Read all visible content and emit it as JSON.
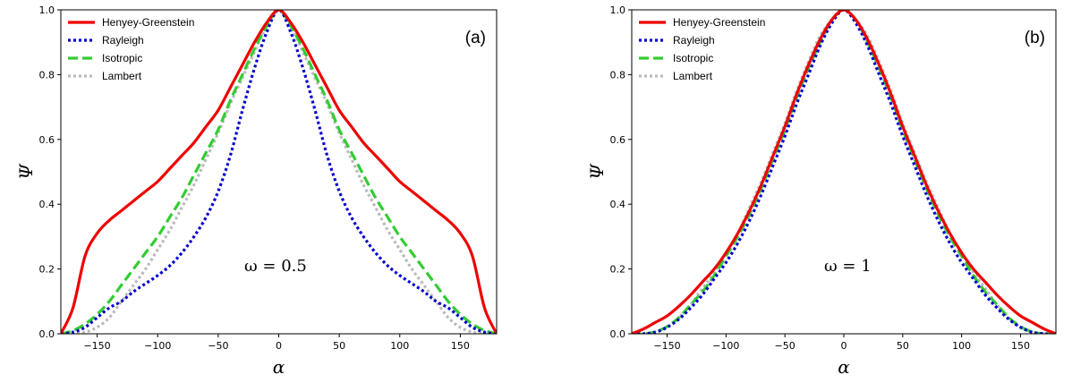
{
  "colors": {
    "Henyey-Greenstein": "#ee0000",
    "Rayleigh": "#0000cc",
    "Isotropic": "#33cc33",
    "Lambert": "#bbbbbb"
  },
  "chart_data": [
    {
      "type": "line",
      "panel_label": "(a)",
      "annotation": "ω = 0.5",
      "xlabel": "α",
      "ylabel": "Ψ",
      "xlim": [
        -180,
        180
      ],
      "ylim": [
        0,
        1
      ],
      "xticks": [
        -150,
        -100,
        -50,
        0,
        50,
        100,
        150
      ],
      "xtick_labels": [
        "−150",
        "−100",
        "−50",
        "0",
        "50",
        "100",
        "150"
      ],
      "yticks": [
        0,
        0.2,
        0.4,
        0.6,
        0.8,
        1.0
      ],
      "ytick_labels": [
        "0.0",
        "0.2",
        "0.4",
        "0.6",
        "0.8",
        "1.0"
      ],
      "grid": false,
      "legend_position": "top-left",
      "series": [
        {
          "name": "Henyey-Greenstein",
          "style": "solid",
          "x": [
            -180,
            -170,
            -160,
            -150,
            -140,
            -130,
            -120,
            -110,
            -100,
            -90,
            -80,
            -70,
            -60,
            -50,
            -40,
            -30,
            -20,
            -10,
            0,
            10,
            20,
            30,
            40,
            50,
            60,
            70,
            80,
            90,
            100,
            110,
            120,
            130,
            140,
            150,
            160,
            170,
            180
          ],
          "y": [
            0,
            0.08,
            0.24,
            0.31,
            0.35,
            0.38,
            0.41,
            0.44,
            0.47,
            0.51,
            0.55,
            0.59,
            0.64,
            0.69,
            0.76,
            0.83,
            0.9,
            0.96,
            1.0,
            0.96,
            0.9,
            0.83,
            0.76,
            0.69,
            0.64,
            0.59,
            0.55,
            0.51,
            0.47,
            0.44,
            0.41,
            0.38,
            0.35,
            0.31,
            0.24,
            0.08,
            0
          ]
        },
        {
          "name": "Rayleigh",
          "style": "dotted",
          "x": [
            -180,
            -170,
            -160,
            -150,
            -140,
            -130,
            -120,
            -110,
            -100,
            -90,
            -80,
            -70,
            -60,
            -50,
            -40,
            -30,
            -20,
            -10,
            0,
            10,
            20,
            30,
            40,
            50,
            60,
            70,
            80,
            90,
            100,
            110,
            120,
            130,
            140,
            150,
            160,
            170,
            180
          ],
          "y": [
            0,
            0.005,
            0.02,
            0.05,
            0.08,
            0.1,
            0.13,
            0.155,
            0.18,
            0.21,
            0.25,
            0.3,
            0.36,
            0.44,
            0.55,
            0.69,
            0.82,
            0.93,
            1.0,
            0.93,
            0.82,
            0.69,
            0.55,
            0.44,
            0.36,
            0.3,
            0.25,
            0.21,
            0.18,
            0.155,
            0.13,
            0.1,
            0.08,
            0.05,
            0.02,
            0.005,
            0
          ]
        },
        {
          "name": "Isotropic",
          "style": "dashed",
          "x": [
            -180,
            -170,
            -160,
            -150,
            -140,
            -130,
            -120,
            -110,
            -100,
            -90,
            -80,
            -70,
            -60,
            -50,
            -40,
            -30,
            -20,
            -10,
            0,
            10,
            20,
            30,
            40,
            50,
            60,
            70,
            80,
            90,
            100,
            110,
            120,
            130,
            140,
            150,
            160,
            170,
            180
          ],
          "y": [
            0,
            0.01,
            0.03,
            0.06,
            0.1,
            0.15,
            0.2,
            0.25,
            0.3,
            0.36,
            0.42,
            0.49,
            0.56,
            0.63,
            0.72,
            0.8,
            0.88,
            0.95,
            1.0,
            0.95,
            0.88,
            0.8,
            0.72,
            0.63,
            0.56,
            0.49,
            0.42,
            0.36,
            0.3,
            0.25,
            0.2,
            0.15,
            0.1,
            0.06,
            0.03,
            0.01,
            0
          ]
        },
        {
          "name": "Lambert",
          "style": "dotted",
          "x": [
            -180,
            -170,
            -160,
            -150,
            -140,
            -130,
            -120,
            -110,
            -100,
            -90,
            -80,
            -70,
            -60,
            -50,
            -40,
            -30,
            -20,
            -10,
            0,
            10,
            20,
            30,
            40,
            50,
            60,
            70,
            80,
            90,
            100,
            110,
            120,
            130,
            140,
            150,
            160,
            170,
            180
          ],
          "y": [
            0,
            0,
            0.005,
            0.02,
            0.05,
            0.1,
            0.15,
            0.2,
            0.26,
            0.32,
            0.39,
            0.46,
            0.54,
            0.62,
            0.71,
            0.79,
            0.87,
            0.95,
            1.0,
            0.95,
            0.87,
            0.79,
            0.71,
            0.62,
            0.54,
            0.46,
            0.39,
            0.32,
            0.26,
            0.2,
            0.15,
            0.1,
            0.05,
            0.02,
            0.005,
            0,
            0
          ]
        }
      ]
    },
    {
      "type": "line",
      "panel_label": "(b)",
      "annotation": "ω = 1",
      "xlabel": "α",
      "ylabel": "Ψ",
      "xlim": [
        -180,
        180
      ],
      "ylim": [
        0,
        1
      ],
      "xticks": [
        -150,
        -100,
        -50,
        0,
        50,
        100,
        150
      ],
      "xtick_labels": [
        "−150",
        "−100",
        "−50",
        "0",
        "50",
        "100",
        "150"
      ],
      "yticks": [
        0,
        0.2,
        0.4,
        0.6,
        0.8,
        1.0
      ],
      "ytick_labels": [
        "0.0",
        "0.2",
        "0.4",
        "0.6",
        "0.8",
        "1.0"
      ],
      "grid": false,
      "legend_position": "top-left",
      "series": [
        {
          "name": "Henyey-Greenstein",
          "style": "solid",
          "x": [
            -180,
            -170,
            -160,
            -150,
            -140,
            -130,
            -120,
            -110,
            -100,
            -90,
            -80,
            -70,
            -60,
            -50,
            -40,
            -30,
            -20,
            -10,
            0,
            10,
            20,
            30,
            40,
            50,
            60,
            70,
            80,
            90,
            100,
            110,
            120,
            130,
            140,
            150,
            160,
            170,
            180
          ],
          "y": [
            0,
            0.015,
            0.035,
            0.055,
            0.085,
            0.12,
            0.16,
            0.2,
            0.25,
            0.31,
            0.38,
            0.46,
            0.55,
            0.64,
            0.74,
            0.83,
            0.91,
            0.97,
            1.0,
            0.97,
            0.91,
            0.83,
            0.74,
            0.64,
            0.55,
            0.46,
            0.38,
            0.31,
            0.25,
            0.2,
            0.16,
            0.12,
            0.085,
            0.055,
            0.035,
            0.015,
            0
          ]
        },
        {
          "name": "Rayleigh",
          "style": "dotted",
          "x": [
            -180,
            -170,
            -160,
            -150,
            -140,
            -130,
            -120,
            -110,
            -100,
            -90,
            -80,
            -70,
            -60,
            -50,
            -40,
            -30,
            -20,
            -10,
            0,
            10,
            20,
            30,
            40,
            50,
            60,
            70,
            80,
            90,
            100,
            110,
            120,
            130,
            140,
            150,
            160,
            170,
            180
          ],
          "y": [
            0,
            0,
            0.005,
            0.02,
            0.045,
            0.08,
            0.12,
            0.17,
            0.22,
            0.28,
            0.35,
            0.43,
            0.52,
            0.61,
            0.71,
            0.8,
            0.89,
            0.96,
            1.0,
            0.96,
            0.89,
            0.8,
            0.71,
            0.61,
            0.52,
            0.43,
            0.35,
            0.28,
            0.22,
            0.17,
            0.12,
            0.08,
            0.045,
            0.02,
            0.005,
            0,
            0
          ]
        },
        {
          "name": "Isotropic",
          "style": "dashed",
          "x": [
            -180,
            -170,
            -160,
            -150,
            -140,
            -130,
            -120,
            -110,
            -100,
            -90,
            -80,
            -70,
            -60,
            -50,
            -40,
            -30,
            -20,
            -10,
            0,
            10,
            20,
            30,
            40,
            50,
            60,
            70,
            80,
            90,
            100,
            110,
            120,
            130,
            140,
            150,
            160,
            170,
            180
          ],
          "y": [
            0,
            0,
            0.006,
            0.022,
            0.05,
            0.09,
            0.13,
            0.18,
            0.24,
            0.3,
            0.37,
            0.45,
            0.54,
            0.63,
            0.73,
            0.82,
            0.9,
            0.97,
            1.0,
            0.97,
            0.9,
            0.82,
            0.73,
            0.63,
            0.54,
            0.45,
            0.37,
            0.3,
            0.24,
            0.18,
            0.13,
            0.09,
            0.05,
            0.022,
            0.006,
            0,
            0
          ]
        },
        {
          "name": "Lambert",
          "style": "dotted",
          "x": [
            -180,
            -170,
            -160,
            -150,
            -140,
            -130,
            -120,
            -110,
            -100,
            -90,
            -80,
            -70,
            -60,
            -50,
            -40,
            -30,
            -20,
            -10,
            0,
            10,
            20,
            30,
            40,
            50,
            60,
            70,
            80,
            90,
            100,
            110,
            120,
            130,
            140,
            150,
            160,
            170,
            180
          ],
          "y": [
            0,
            0,
            0.005,
            0.02,
            0.05,
            0.09,
            0.14,
            0.19,
            0.25,
            0.31,
            0.39,
            0.47,
            0.56,
            0.65,
            0.75,
            0.84,
            0.92,
            0.97,
            1.0,
            0.97,
            0.92,
            0.84,
            0.75,
            0.65,
            0.56,
            0.47,
            0.39,
            0.31,
            0.25,
            0.19,
            0.14,
            0.09,
            0.05,
            0.02,
            0.005,
            0,
            0
          ]
        }
      ]
    }
  ]
}
